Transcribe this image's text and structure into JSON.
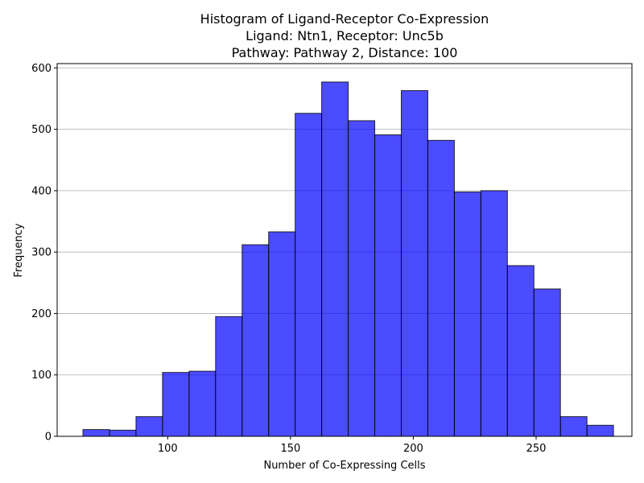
{
  "chart_data": {
    "type": "bar",
    "histogram": true,
    "title_lines": [
      "Histogram of Ligand-Receptor Co-Expression",
      "Ligand: Ntn1, Receptor: Unc5b",
      "Pathway: Pathway 2, Distance: 100"
    ],
    "xlabel": "Number of Co-Expressing Cells",
    "ylabel": "Frequency",
    "bin_edges": [
      65.5,
      76.3,
      87.1,
      97.9,
      108.7,
      119.5,
      130.3,
      141.1,
      151.9,
      162.7,
      173.5,
      184.3,
      195.1,
      205.9,
      216.7,
      227.5,
      238.3,
      249.1,
      259.9,
      270.7,
      281.5
    ],
    "values": [
      11,
      10,
      32,
      104,
      106,
      195,
      312,
      333,
      526,
      577,
      514,
      491,
      563,
      482,
      398,
      400,
      278,
      240,
      32,
      18
    ],
    "xlim": [
      55,
      289
    ],
    "ylim": [
      0,
      607
    ],
    "xticks": [
      100,
      150,
      200,
      250
    ],
    "yticks": [
      0,
      100,
      200,
      300,
      400,
      500,
      600
    ],
    "grid": "y-axis",
    "bar_color": "#0000ff",
    "bar_opacity": 0.7,
    "edge_color": "#000000"
  }
}
